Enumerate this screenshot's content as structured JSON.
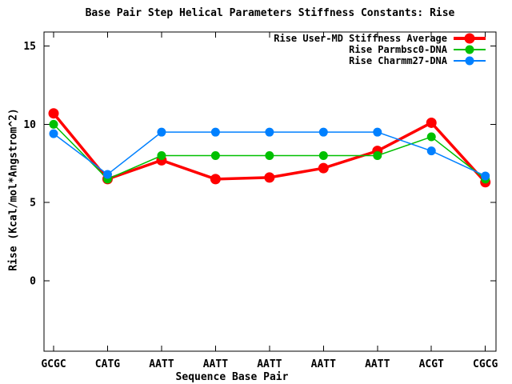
{
  "chart_data": {
    "type": "line",
    "title": "Base Pair Step Helical Parameters Stiffness Constants: Rise",
    "xlabel": "Sequence Base Pair",
    "ylabel": "Rise (Kcal/mol*Angstrom^2)",
    "categories": [
      "GCGC",
      "CATG",
      "AATT",
      "AATT",
      "AATT",
      "AATT",
      "AATT",
      "ACGT",
      "CGCG"
    ],
    "yticks": [
      0,
      5,
      10,
      15
    ],
    "ylim": [
      -4.5,
      15.9
    ],
    "grid": false,
    "legend_position": "top-right-inside",
    "background_color": "#ffffff",
    "axis_color": "#000000",
    "series": [
      {
        "name": "Rise User-MD Stiffness Average",
        "color": "#ff0000",
        "line_width": 3.5,
        "marker": "filled-circle",
        "marker_radius": 6.5,
        "values": [
          10.7,
          6.5,
          7.7,
          6.5,
          6.6,
          7.2,
          8.3,
          10.1,
          6.3
        ]
      },
      {
        "name": "Rise Parmbsc0-DNA",
        "color": "#00c000",
        "line_width": 1.5,
        "marker": "filled-circle",
        "marker_radius": 5.5,
        "values": [
          10.0,
          6.5,
          8.0,
          8.0,
          8.0,
          8.0,
          8.0,
          9.2,
          6.5
        ]
      },
      {
        "name": "Rise Charmm27-DNA",
        "color": "#0080ff",
        "line_width": 1.5,
        "marker": "filled-circle",
        "marker_radius": 5.5,
        "values": [
          9.4,
          6.8,
          9.5,
          9.5,
          9.5,
          9.5,
          9.5,
          8.3,
          6.7
        ]
      }
    ]
  }
}
